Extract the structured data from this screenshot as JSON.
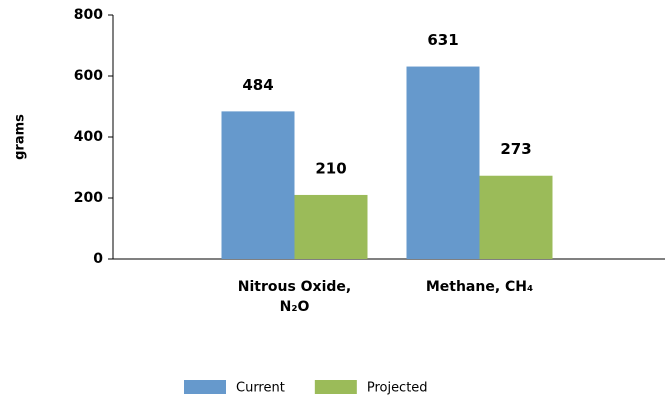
{
  "chart_data": {
    "type": "bar",
    "y_label": "grams",
    "categories": [
      "Nitrous Oxide, N₂O",
      "Methane, CH₄"
    ],
    "series": [
      {
        "name": "Current",
        "color": "#6699cc",
        "values": [
          484,
          631
        ]
      },
      {
        "name": "Projected",
        "color": "#9bbb59",
        "values": [
          210,
          273
        ]
      }
    ],
    "ylim": [
      0,
      800
    ],
    "yticks": [
      0,
      200,
      400,
      600,
      800
    ],
    "grid": false,
    "legend": "bottom"
  }
}
